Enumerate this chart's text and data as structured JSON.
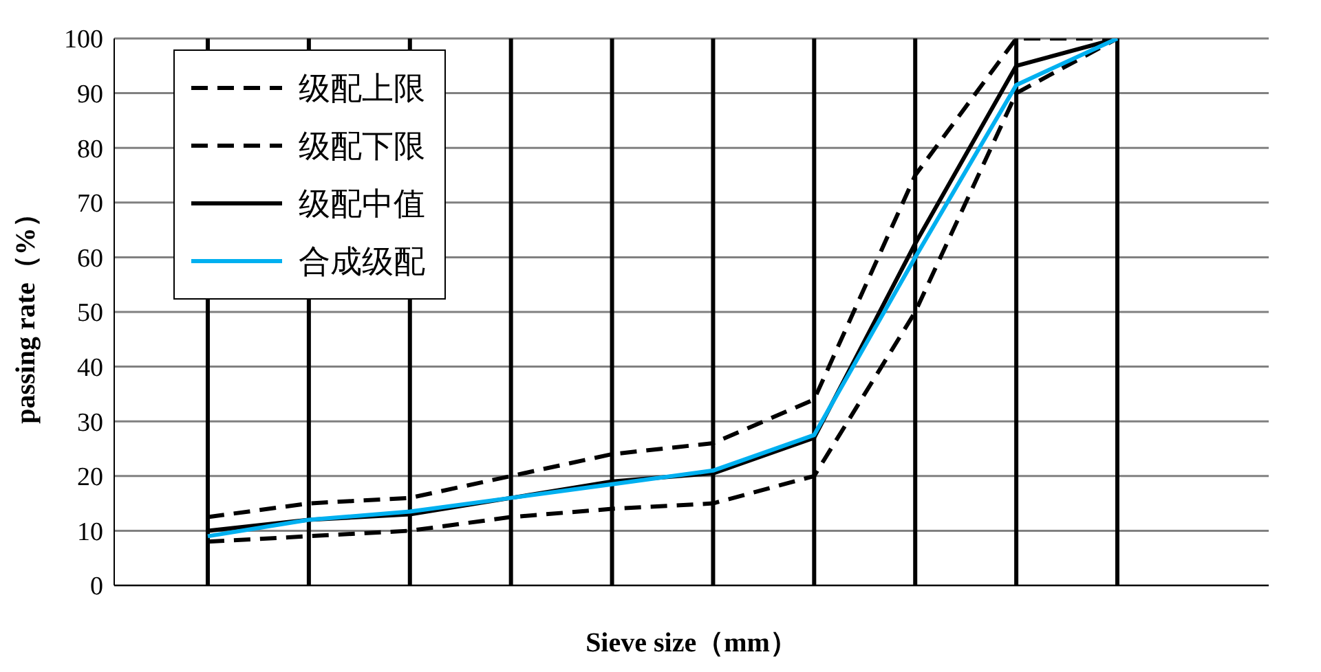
{
  "chart_data": {
    "type": "line",
    "xlabel": "Sieve size（mm）",
    "ylabel": "passing rate（%）",
    "categories": [
      null,
      null,
      null,
      null,
      null,
      null,
      null,
      null,
      null,
      null
    ],
    "series": [
      {
        "name": "级配上限",
        "color": "#000000",
        "line_style": "dashed",
        "values": [
          12.5,
          15,
          16,
          20,
          24,
          26,
          34,
          75,
          100,
          100
        ]
      },
      {
        "name": "级配下限",
        "color": "#000000",
        "line_style": "dashed",
        "values": [
          8,
          9,
          10,
          12.5,
          14,
          15,
          20,
          50,
          90,
          100
        ]
      },
      {
        "name": "级配中值",
        "color": "#000000",
        "line_style": "solid",
        "values": [
          10,
          12,
          13,
          16,
          19,
          20.5,
          27,
          62.5,
          95,
          100
        ]
      },
      {
        "name": "合成级配",
        "color": "#00b0f0",
        "line_style": "solid",
        "values": [
          9,
          12,
          13.5,
          16,
          18.5,
          21,
          27.5,
          60,
          91.5,
          100
        ]
      }
    ],
    "ylim": [
      0,
      100
    ],
    "yticks": [
      0,
      10,
      20,
      30,
      40,
      50,
      60,
      70,
      80,
      90,
      100
    ],
    "grid": true,
    "legend": "top left",
    "marker": "none",
    "tick_labels": "y"
  }
}
